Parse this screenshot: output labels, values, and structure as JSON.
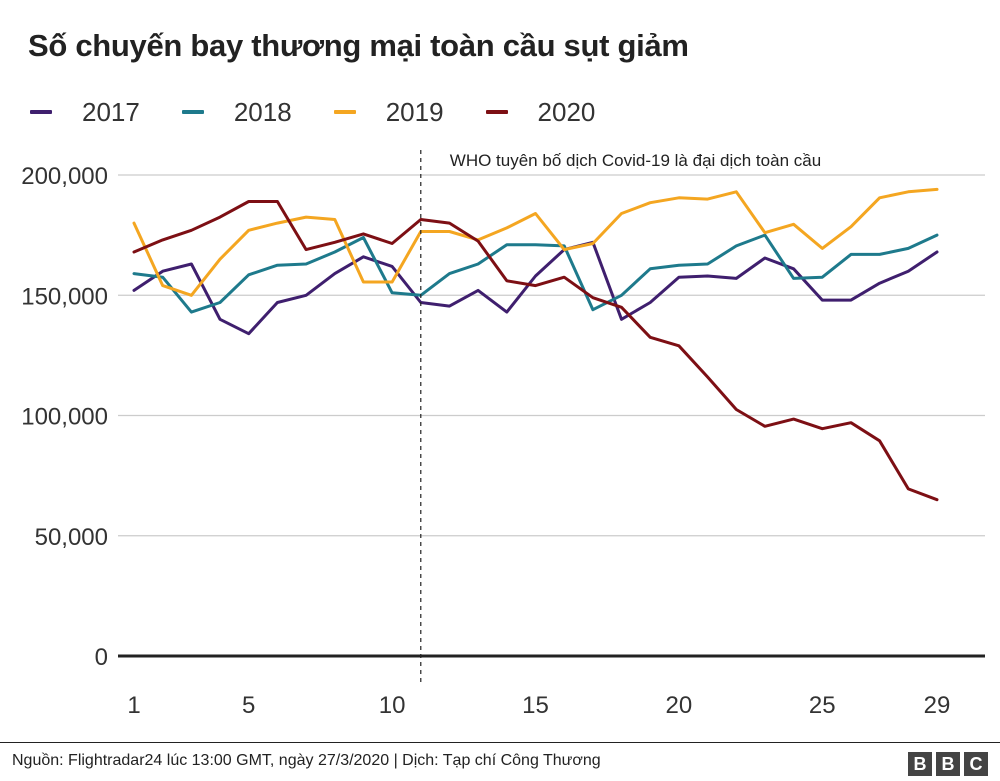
{
  "title": "Số chuyến bay thương mại toàn cầu sụt giảm",
  "source": "Nguồn: Flightradar24 lúc 13:00 GMT, ngày 27/3/2020 | Dịch: Tạp chí Công Thương",
  "logo": [
    "B",
    "B",
    "C"
  ],
  "annotation": "WHO tuyên bố dịch Covid-19 là đại dịch toàn cầu",
  "colors": {
    "2017": "#3f1f6e",
    "2018": "#1e7a8c",
    "2019": "#f4a621",
    "2020": "#7d0f14"
  },
  "chart_data": {
    "type": "line",
    "title": "Số chuyến bay thương mại toàn cầu sụt giảm",
    "xlabel": "",
    "ylabel": "",
    "xlim": [
      1,
      29
    ],
    "ylim": [
      0,
      200000
    ],
    "x_ticks": [
      1,
      5,
      10,
      15,
      20,
      25,
      29
    ],
    "y_ticks": [
      0,
      50000,
      100000,
      150000,
      200000
    ],
    "y_tick_labels": [
      "0",
      "50,000",
      "100,000",
      "150,000",
      "200,000"
    ],
    "grid": true,
    "legend_position": "top-left",
    "annotation": {
      "x": 11,
      "text": "WHO tuyên bố dịch Covid-19 là đại dịch toàn cầu"
    },
    "x": [
      1,
      2,
      3,
      4,
      5,
      6,
      7,
      8,
      9,
      10,
      11,
      12,
      13,
      14,
      15,
      16,
      17,
      18,
      19,
      20,
      21,
      22,
      23,
      24,
      25,
      26,
      27,
      28,
      29
    ],
    "series": [
      {
        "name": "2017",
        "color": "#3f1f6e",
        "values": [
          152000,
          160000,
          163000,
          140000,
          134000,
          147000,
          150000,
          159000,
          166000,
          162000,
          147000,
          145500,
          152000,
          143000,
          158000,
          169000,
          172000,
          140000,
          147000,
          157500,
          158000,
          157000,
          165500,
          161000,
          148000,
          148000,
          155000,
          160000,
          168000
        ]
      },
      {
        "name": "2018",
        "color": "#1e7a8c",
        "values": [
          159000,
          157500,
          143000,
          147000,
          158500,
          162500,
          163000,
          168000,
          174000,
          151000,
          150000,
          159000,
          163000,
          171000,
          171000,
          170500,
          144000,
          150000,
          161000,
          162500,
          163000,
          170500,
          175000,
          157000,
          157500,
          167000,
          167000,
          169500,
          175000
        ]
      },
      {
        "name": "2019",
        "color": "#f4a621",
        "values": [
          180000,
          154000,
          150000,
          165000,
          177000,
          180000,
          182500,
          181500,
          155500,
          155500,
          176500,
          176500,
          173000,
          178000,
          184000,
          169000,
          171500,
          184000,
          188500,
          190500,
          190000,
          193000,
          176000,
          179500,
          169500,
          178500,
          190500,
          193000,
          194000
        ]
      },
      {
        "name": "2020",
        "color": "#7d0f14",
        "values": [
          168000,
          173000,
          177000,
          182500,
          189000,
          189000,
          169000,
          172000,
          175500,
          171500,
          181500,
          180000,
          172500,
          156000,
          154000,
          157500,
          149000,
          145000,
          132500,
          129000,
          116000,
          102500,
          95500,
          98500,
          94500,
          97000,
          89500,
          69500,
          65000
        ]
      }
    ]
  }
}
